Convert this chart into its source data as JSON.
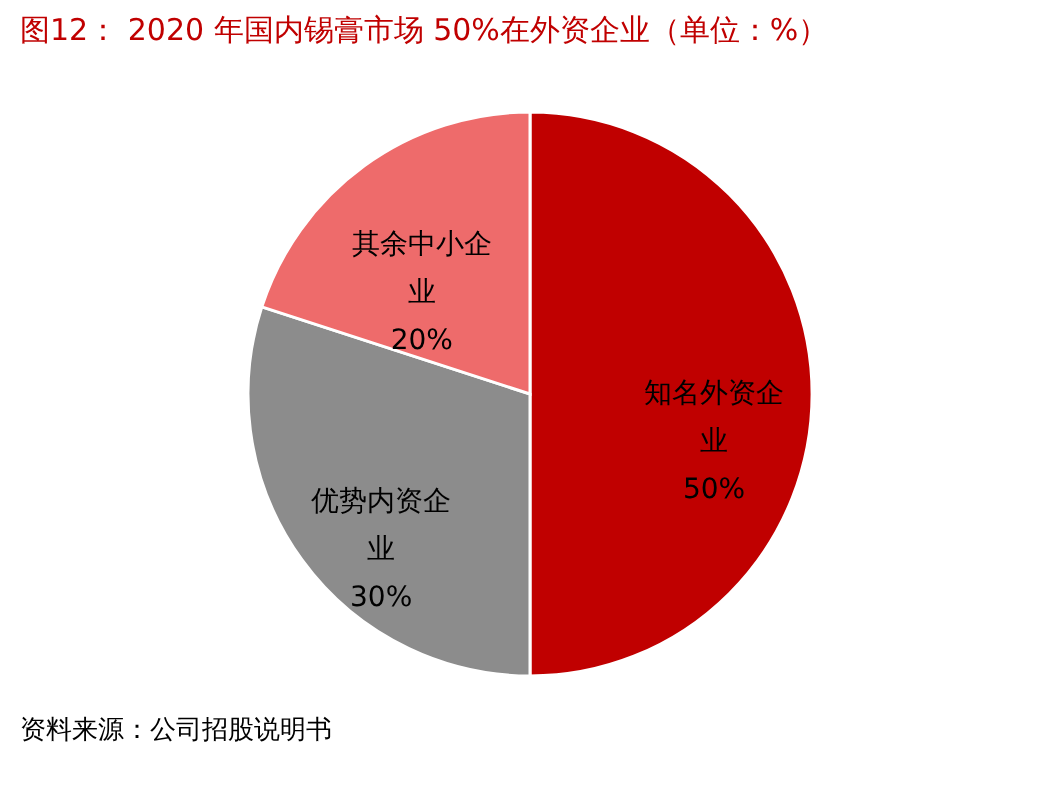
{
  "chart_data": {
    "type": "pie",
    "title": "图12：  2020 年国内锡膏市场 50%在外资企业（单位：%）",
    "categories": [
      "知名外资企业",
      "优势内资企业",
      "其余中小企业"
    ],
    "values": [
      50,
      30,
      20
    ],
    "colors": [
      "#c00000",
      "#8c8c8c",
      "#ee6b6b"
    ],
    "value_labels": [
      "50%",
      "30%",
      "20%"
    ],
    "legend": false,
    "annotations": [
      "资料来源：公司招股说明书"
    ]
  }
}
